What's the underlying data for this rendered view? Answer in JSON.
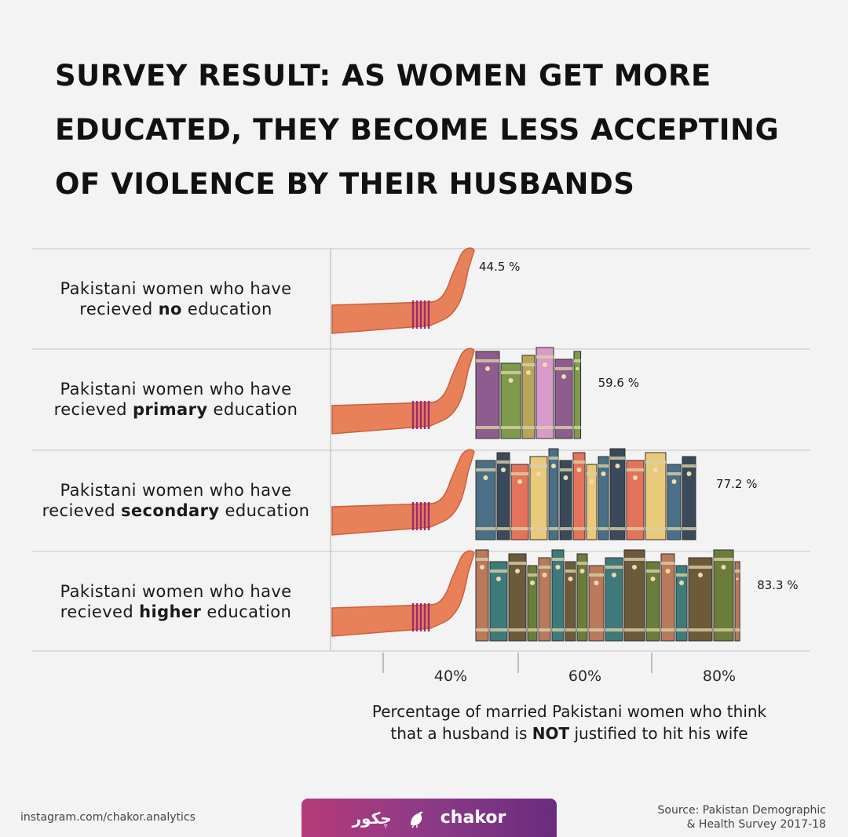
{
  "chart_data": {
    "type": "bar",
    "orientation": "horizontal",
    "title": "SURVEY RESULT: AS WOMEN GET MORE EDUCATED, THEY BECOME LESS ACCEPTING OF VIOLENCE BY THEIR HUSBANDS",
    "categories": [
      {
        "prefix": "Pakistani women who have",
        "line2_pre": "recieved ",
        "level": "no",
        "line2_post": " education"
      },
      {
        "prefix": "Pakistani women who have",
        "line2_pre": "recieved ",
        "level": "primary",
        "line2_post": " education"
      },
      {
        "prefix": "Pakistani women who have",
        "line2_pre": "recieved ",
        "level": "secondary",
        "line2_post": " education"
      },
      {
        "prefix": "Pakistani women who have",
        "line2_pre": "recieved ",
        "level": "higher",
        "line2_post": " education"
      }
    ],
    "values": [
      44.5,
      59.6,
      77.2,
      83.3
    ],
    "value_labels": [
      "44.5 %",
      "59.6 %",
      "77.2 %",
      "83.3 %"
    ],
    "xticks": [
      40,
      60,
      80
    ],
    "xtick_labels": [
      "40%",
      "60%",
      "80%"
    ],
    "xlim": [
      20,
      95
    ],
    "xlabel": {
      "line1": "Percentage of married Pakistani women who think",
      "line2_pre": "that a husband is ",
      "line2_bold": "NOT",
      "line2_post": " justified to hit his wife"
    },
    "grid": "horizontal row separators",
    "colors": {
      "arm": "#e8805a",
      "arm_outline": "#c9603c",
      "bangle": "#9c2a6e",
      "books": [
        "#6a7d3b",
        "#8e5d8d",
        "#4a6f86",
        "#b87a5a",
        "#7f9a4c",
        "#3b4a5a",
        "#3f7a7a",
        "#b8a55a",
        "#e4735c",
        "#6d5a3a",
        "#d89ac8",
        "#e9c97a"
      ]
    }
  },
  "footer": {
    "instagram": "instagram.com/chakor.analytics",
    "brand_urdu": "چکور",
    "brand_name": "chakor",
    "source_line1": "Source: Pakistan Demographic",
    "source_line2": "& Health Survey 2017-18"
  }
}
